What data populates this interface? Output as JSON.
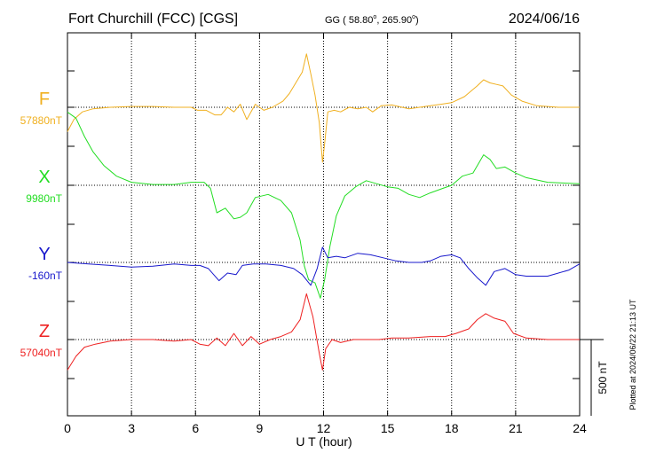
{
  "header": {
    "station": "Fort Churchill (FCC)  [CGS]",
    "coords_prefix": "GG ( 58.80",
    "coords_mid": ", 265.90",
    "coords_suffix": ")",
    "degree_mark": "o",
    "date": "2024/06/16"
  },
  "side_note": "Plotted at 2024/06/22 21:13 UT",
  "scale_bar_label": "500 nT",
  "colors": {
    "F": "#f0b020",
    "X": "#22dd22",
    "Y": "#1818cc",
    "Z": "#ee2020",
    "grid": "#000000"
  },
  "chart_data": {
    "type": "line",
    "xlabel": "U T (hour)",
    "xlim": [
      0,
      24
    ],
    "x_ticks": [
      "0",
      "3",
      "6",
      "9",
      "12",
      "15",
      "18",
      "21",
      "24"
    ],
    "scale_nT_per_bar": 500,
    "series": [
      {
        "name": "F",
        "baseline_label": "57880nT",
        "baseline": 57880,
        "points": [
          [
            0,
            57720
          ],
          [
            0.3,
            57800
          ],
          [
            0.7,
            57850
          ],
          [
            1.2,
            57870
          ],
          [
            2,
            57880
          ],
          [
            3,
            57885
          ],
          [
            4,
            57885
          ],
          [
            5,
            57880
          ],
          [
            5.8,
            57880
          ],
          [
            6.1,
            57860
          ],
          [
            6.5,
            57860
          ],
          [
            6.9,
            57830
          ],
          [
            7.2,
            57830
          ],
          [
            7.5,
            57880
          ],
          [
            7.8,
            57850
          ],
          [
            8.1,
            57900
          ],
          [
            8.4,
            57800
          ],
          [
            8.8,
            57900
          ],
          [
            9.2,
            57860
          ],
          [
            9.6,
            57880
          ],
          [
            10.1,
            57920
          ],
          [
            10.4,
            57970
          ],
          [
            10.7,
            58040
          ],
          [
            11,
            58110
          ],
          [
            11.2,
            58230
          ],
          [
            11.4,
            58100
          ],
          [
            11.6,
            57960
          ],
          [
            11.8,
            57780
          ],
          [
            11.95,
            57520
          ],
          [
            12.05,
            57640
          ],
          [
            12.2,
            57850
          ],
          [
            12.5,
            57860
          ],
          [
            12.8,
            57850
          ],
          [
            13.2,
            57880
          ],
          [
            13.6,
            57870
          ],
          [
            14,
            57880
          ],
          [
            14.3,
            57850
          ],
          [
            14.7,
            57890
          ],
          [
            15.2,
            57895
          ],
          [
            16,
            57870
          ],
          [
            17,
            57890
          ],
          [
            17.5,
            57900
          ],
          [
            18,
            57910
          ],
          [
            18.6,
            57950
          ],
          [
            19.2,
            58020
          ],
          [
            19.5,
            58060
          ],
          [
            19.8,
            58040
          ],
          [
            20.1,
            58030
          ],
          [
            20.4,
            58020
          ],
          [
            20.8,
            57960
          ],
          [
            21.3,
            57920
          ],
          [
            22,
            57890
          ],
          [
            23,
            57880
          ],
          [
            24,
            57880
          ]
        ]
      },
      {
        "name": "X",
        "baseline_label": "9980nT",
        "baseline": 9980,
        "points": [
          [
            0,
            10460
          ],
          [
            0.4,
            10420
          ],
          [
            0.8,
            10300
          ],
          [
            1.2,
            10200
          ],
          [
            1.7,
            10110
          ],
          [
            2.3,
            10040
          ],
          [
            3,
            10000
          ],
          [
            4,
            9985
          ],
          [
            5,
            9985
          ],
          [
            5.8,
            10000
          ],
          [
            6.4,
            10000
          ],
          [
            6.7,
            9960
          ],
          [
            7,
            9800
          ],
          [
            7.4,
            9830
          ],
          [
            7.8,
            9760
          ],
          [
            8.1,
            9770
          ],
          [
            8.4,
            9800
          ],
          [
            8.8,
            9900
          ],
          [
            9.4,
            9920
          ],
          [
            10,
            9880
          ],
          [
            10.5,
            9800
          ],
          [
            10.9,
            9620
          ],
          [
            11.1,
            9450
          ],
          [
            11.3,
            9360
          ],
          [
            11.6,
            9340
          ],
          [
            11.85,
            9240
          ],
          [
            12.05,
            9360
          ],
          [
            12.3,
            9580
          ],
          [
            12.6,
            9780
          ],
          [
            13,
            9910
          ],
          [
            13.5,
            9970
          ],
          [
            14,
            10010
          ],
          [
            14.5,
            9990
          ],
          [
            15,
            9970
          ],
          [
            15.5,
            9960
          ],
          [
            16,
            9920
          ],
          [
            16.5,
            9900
          ],
          [
            17,
            9930
          ],
          [
            17.6,
            9960
          ],
          [
            18,
            9980
          ],
          [
            18.5,
            10040
          ],
          [
            19,
            10060
          ],
          [
            19.5,
            10180
          ],
          [
            19.8,
            10150
          ],
          [
            20.1,
            10090
          ],
          [
            20.5,
            10100
          ],
          [
            21,
            10060
          ],
          [
            21.5,
            10030
          ],
          [
            22.5,
            10000
          ],
          [
            24,
            9990
          ]
        ]
      },
      {
        "name": "Y",
        "baseline_label": "-160nT",
        "baseline": -160,
        "points": [
          [
            0,
            -160
          ],
          [
            1,
            -170
          ],
          [
            2,
            -180
          ],
          [
            3,
            -190
          ],
          [
            4,
            -185
          ],
          [
            5,
            -170
          ],
          [
            5.8,
            -180
          ],
          [
            6.2,
            -180
          ],
          [
            6.6,
            -200
          ],
          [
            7.1,
            -280
          ],
          [
            7.5,
            -230
          ],
          [
            7.9,
            -240
          ],
          [
            8.2,
            -180
          ],
          [
            8.7,
            -170
          ],
          [
            9.3,
            -170
          ],
          [
            10,
            -180
          ],
          [
            10.6,
            -200
          ],
          [
            11,
            -240
          ],
          [
            11.4,
            -310
          ],
          [
            11.7,
            -200
          ],
          [
            11.95,
            -60
          ],
          [
            12.2,
            -130
          ],
          [
            12.6,
            -120
          ],
          [
            13,
            -130
          ],
          [
            13.6,
            -100
          ],
          [
            14.2,
            -110
          ],
          [
            14.8,
            -130
          ],
          [
            15.4,
            -150
          ],
          [
            16,
            -160
          ],
          [
            16.6,
            -160
          ],
          [
            17,
            -150
          ],
          [
            17.5,
            -120
          ],
          [
            18,
            -110
          ],
          [
            18.4,
            -130
          ],
          [
            18.8,
            -200
          ],
          [
            19.2,
            -260
          ],
          [
            19.6,
            -310
          ],
          [
            20,
            -220
          ],
          [
            20.5,
            -200
          ],
          [
            21,
            -240
          ],
          [
            21.5,
            -250
          ],
          [
            22.5,
            -250
          ],
          [
            23.5,
            -210
          ],
          [
            24,
            -170
          ]
        ]
      },
      {
        "name": "Z",
        "baseline_label": "57040nT",
        "baseline": 57040,
        "points": [
          [
            0,
            56840
          ],
          [
            0.4,
            56930
          ],
          [
            0.8,
            56990
          ],
          [
            1.3,
            57010
          ],
          [
            2,
            57030
          ],
          [
            3,
            57040
          ],
          [
            4,
            57040
          ],
          [
            5,
            57030
          ],
          [
            5.8,
            57040
          ],
          [
            6.2,
            57010
          ],
          [
            6.6,
            57000
          ],
          [
            7,
            57050
          ],
          [
            7.4,
            57000
          ],
          [
            7.8,
            57080
          ],
          [
            8.2,
            57000
          ],
          [
            8.6,
            57060
          ],
          [
            9,
            57010
          ],
          [
            9.5,
            57040
          ],
          [
            10,
            57060
          ],
          [
            10.5,
            57090
          ],
          [
            10.9,
            57170
          ],
          [
            11.2,
            57340
          ],
          [
            11.5,
            57190
          ],
          [
            11.8,
            56950
          ],
          [
            11.95,
            56840
          ],
          [
            12.1,
            56980
          ],
          [
            12.4,
            57040
          ],
          [
            12.8,
            57020
          ],
          [
            13.4,
            57040
          ],
          [
            14,
            57040
          ],
          [
            14.6,
            57040
          ],
          [
            15.2,
            57050
          ],
          [
            16,
            57050
          ],
          [
            17,
            57060
          ],
          [
            17.7,
            57060
          ],
          [
            18.2,
            57080
          ],
          [
            18.8,
            57110
          ],
          [
            19.2,
            57170
          ],
          [
            19.6,
            57210
          ],
          [
            20,
            57180
          ],
          [
            20.5,
            57160
          ],
          [
            20.9,
            57080
          ],
          [
            21.5,
            57050
          ],
          [
            22.5,
            57040
          ],
          [
            23.5,
            57040
          ],
          [
            24,
            57040
          ]
        ]
      }
    ]
  }
}
